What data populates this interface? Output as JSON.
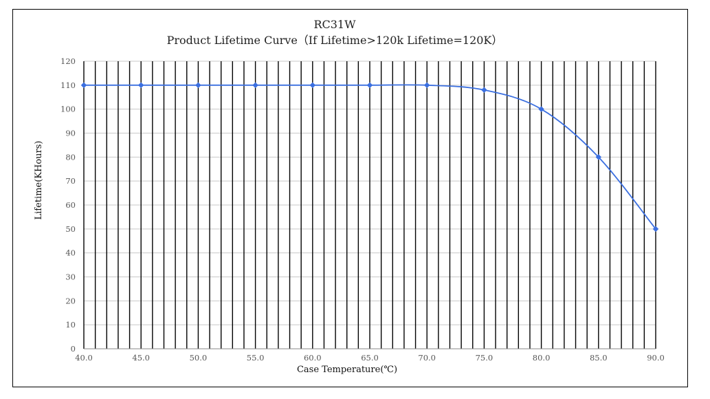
{
  "chart_data": {
    "type": "line",
    "title": "RC31W",
    "subtitle": "Product Lifetime Curve（If Lifetime>120k Lifetime=120K）",
    "xlabel": "Case Temperature(℃)",
    "ylabel": "Lifetime(KHours)",
    "xlim": [
      40,
      90
    ],
    "ylim": [
      0,
      120
    ],
    "x_ticks": [
      "40.0",
      "45.0",
      "50.0",
      "55.0",
      "60.0",
      "65.0",
      "70.0",
      "75.0",
      "80.0",
      "85.0",
      "90.0"
    ],
    "y_ticks": [
      "0",
      "10",
      "20",
      "30",
      "40",
      "50",
      "60",
      "70",
      "80",
      "90",
      "100",
      "110",
      "120"
    ],
    "grid": {
      "vertical_lines_every": 1,
      "horizontal_lines_every": 10
    },
    "series": [
      {
        "color": "#3b6fe0",
        "x": [
          40,
          45,
          50,
          55,
          60,
          65,
          70,
          75,
          80,
          85,
          90
        ],
        "y": [
          110,
          110,
          110,
          110,
          110,
          110,
          110,
          108,
          100,
          80,
          50
        ]
      }
    ]
  }
}
